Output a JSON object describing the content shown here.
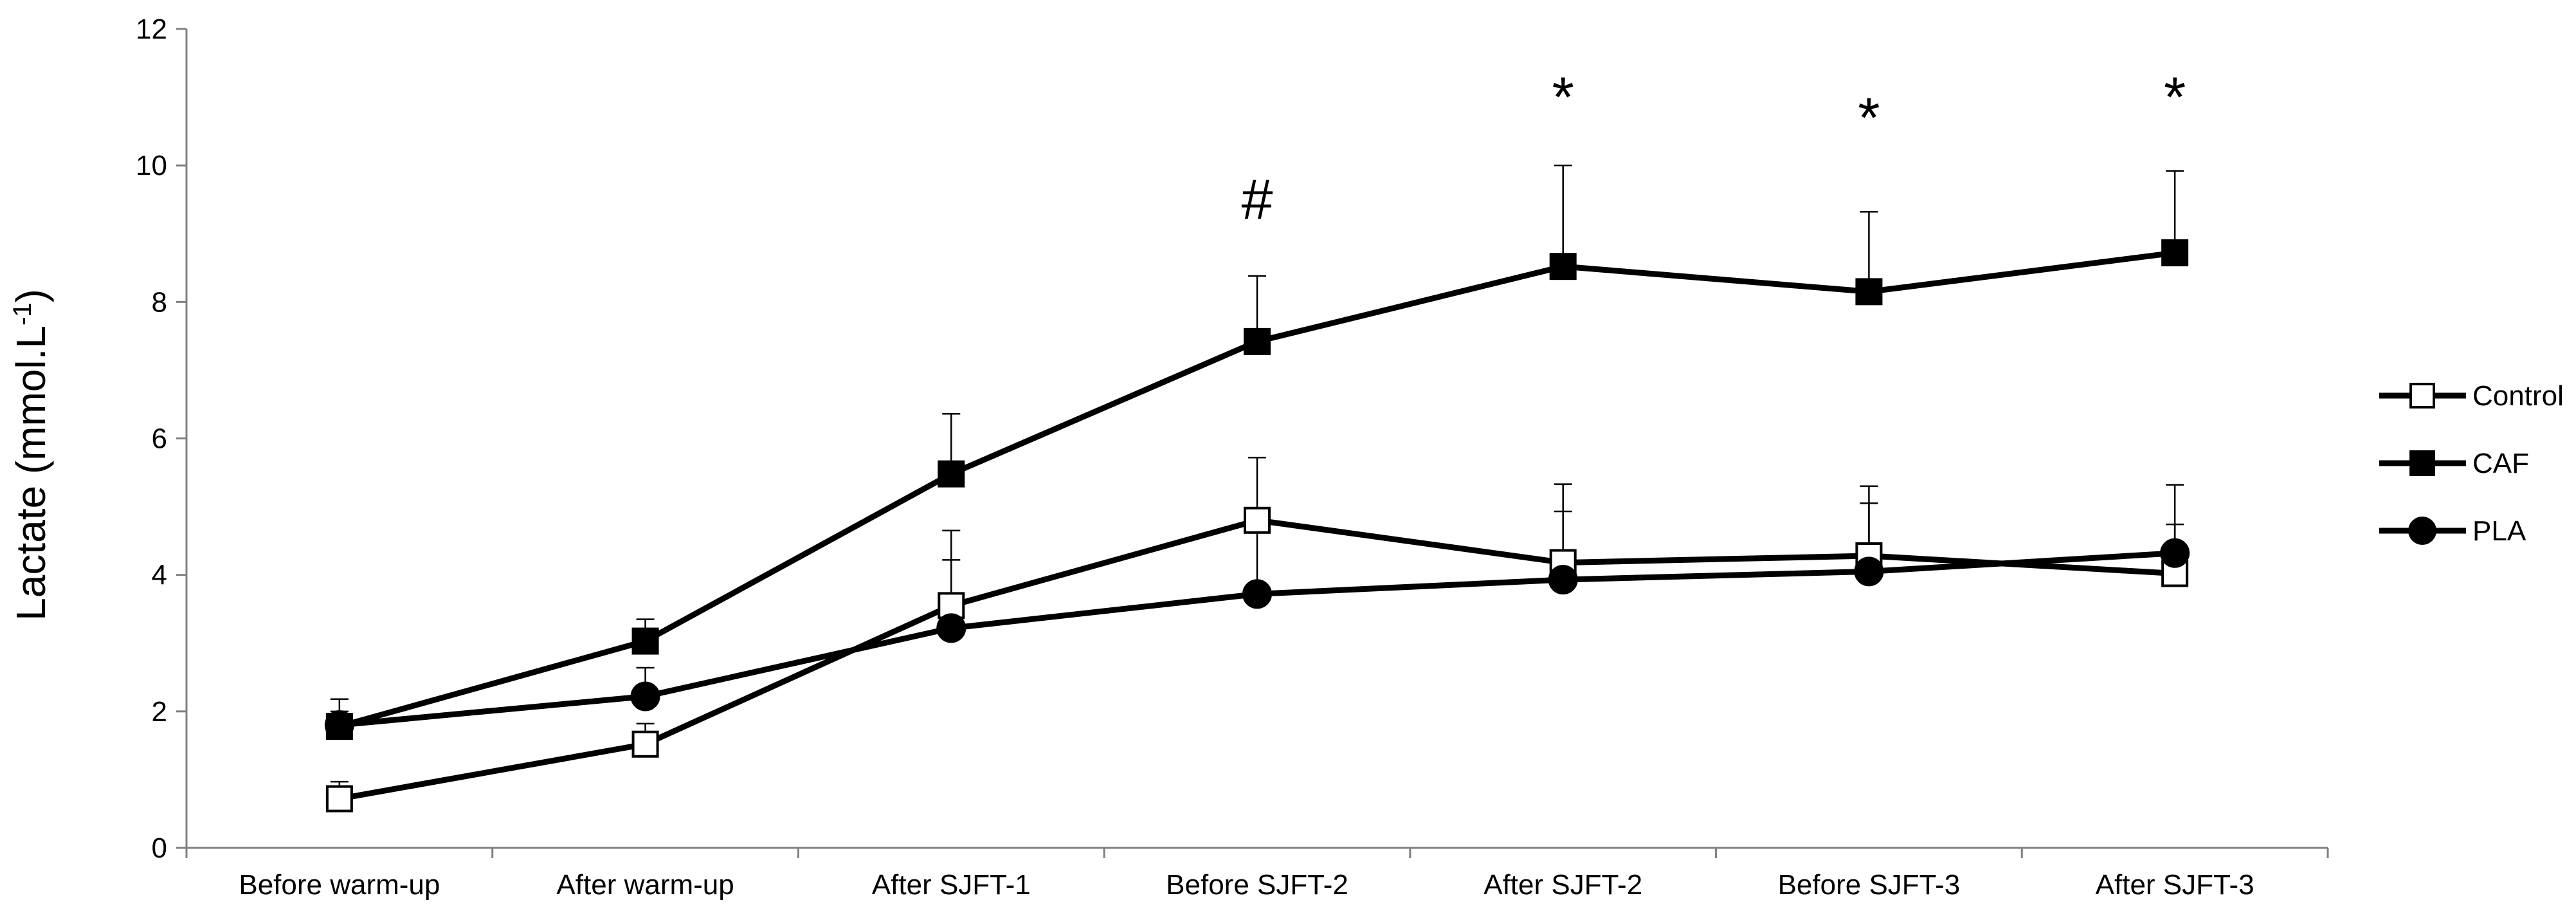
{
  "chart_data": {
    "type": "line",
    "title": "",
    "xlabel": "",
    "ylabel": "Lactate (mmol.L",
    "ylabel_superscript": "-1",
    "ylabel_suffix": ")",
    "ylim": [
      0,
      12
    ],
    "yticks": [
      0,
      2,
      4,
      6,
      8,
      10,
      12
    ],
    "grid": false,
    "legend_position": "right",
    "categories": [
      "Before warm-up",
      "After warm-up",
      "After SJFT-1",
      "Before SJFT-2",
      "After SJFT-2",
      "Before SJFT-3",
      "After SJFT-3"
    ],
    "series": [
      {
        "name": "Control",
        "marker": "square-open",
        "values": [
          0.72,
          1.52,
          3.55,
          4.8,
          4.18,
          4.28,
          4.02
        ],
        "error": [
          0.25,
          0.3,
          1.1,
          0.92,
          1.15,
          1.02,
          0.72
        ]
      },
      {
        "name": "CAF",
        "marker": "square-filled",
        "values": [
          1.78,
          3.03,
          5.48,
          7.42,
          8.52,
          8.15,
          8.72
        ],
        "error": [
          0.4,
          0.32,
          0.88,
          0.96,
          1.48,
          1.17,
          1.2
        ]
      },
      {
        "name": "PLA",
        "marker": "circle-filled",
        "values": [
          1.8,
          2.22,
          3.22,
          3.72,
          3.93,
          4.05,
          4.32
        ],
        "error": [
          0.2,
          0.42,
          1.0,
          1.0,
          1.0,
          1.0,
          1.0
        ]
      }
    ],
    "annotations": [
      {
        "category": "Before SJFT-2",
        "text": "#",
        "y": 9.5
      },
      {
        "category": "After SJFT-2",
        "text": "*",
        "y": 11.0
      },
      {
        "category": "Before SJFT-3",
        "text": "*",
        "y": 10.7
      },
      {
        "category": "After SJFT-3",
        "text": "*",
        "y": 11.0
      }
    ],
    "colors": {
      "line": "#000000",
      "open_fill": "#ffffff",
      "filled": "#000000"
    }
  }
}
